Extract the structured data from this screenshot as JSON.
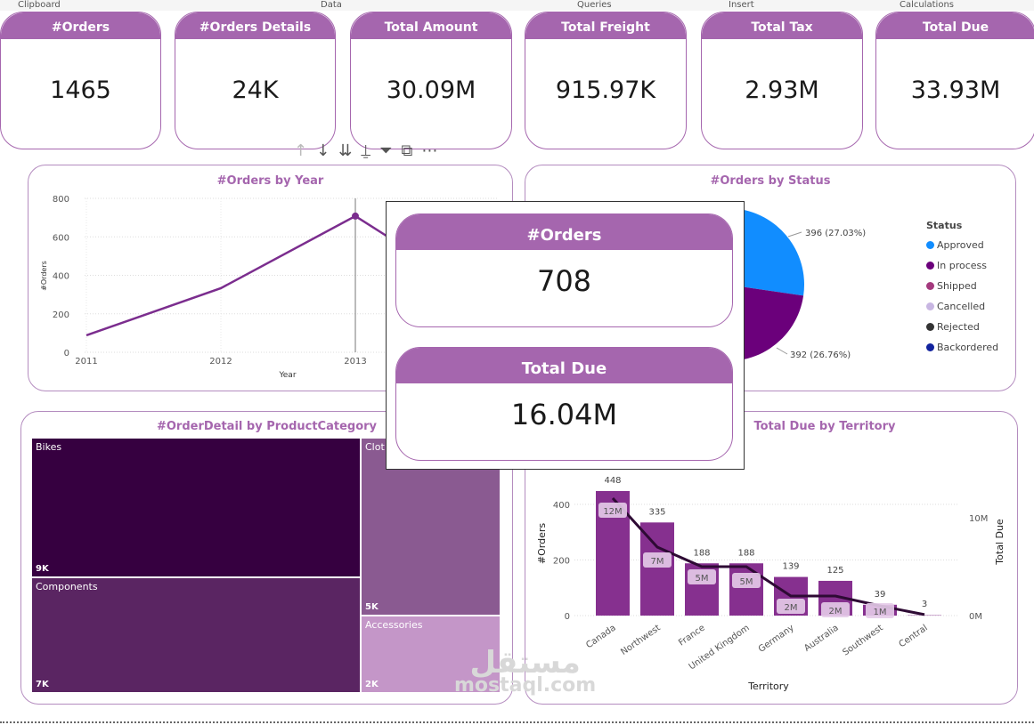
{
  "ribbon": [
    "Clipboard",
    "Data",
    "Queries",
    "Insert",
    "Calculations"
  ],
  "cards": [
    {
      "label": "#Orders",
      "value": "1465"
    },
    {
      "label": "#Orders Details",
      "value": "24K"
    },
    {
      "label": "Total Amount",
      "value": "30.09M"
    },
    {
      "label": "Total Freight",
      "value": "915.97K"
    },
    {
      "label": "Total Tax",
      "value": "2.93M"
    },
    {
      "label": "Total Due",
      "value": "33.93M"
    }
  ],
  "visual_header_icons": [
    "arrow-up-icon",
    "arrow-down-icon",
    "double-arrow-down-icon",
    "expand-hierarchy-icon",
    "filter-icon",
    "focus-mode-icon",
    "more-options-icon"
  ],
  "tooltip": {
    "orders_label": "#Orders",
    "orders_value": "708",
    "due_label": "Total Due",
    "due_value": "16.04M"
  },
  "colors": {
    "accent": "#a566ae",
    "line": "#7b2d8e",
    "bar": "#86308f",
    "combo_line": "#2e0a34"
  },
  "chart_data": [
    {
      "type": "line",
      "title": "#Orders by Year",
      "xlabel": "Year",
      "ylabel": "#Orders",
      "x": [
        "2011",
        "2012",
        "2013"
      ],
      "values": [
        88,
        333,
        708
      ],
      "ylim": [
        0,
        800
      ],
      "yticks": [
        "0",
        "200",
        "400",
        "600",
        "800"
      ],
      "grid": true,
      "highlight": "2013"
    },
    {
      "type": "pie",
      "title": "#Orders by Status",
      "legend_title": "Status",
      "legend_position": "right",
      "legend": [
        {
          "name": "Approved",
          "color": "#118dff"
        },
        {
          "name": "In process",
          "color": "#6b007b"
        },
        {
          "name": "Shipped",
          "color": "#a43a7e"
        },
        {
          "name": "Cancelled",
          "color": "#c8b6e2"
        },
        {
          "name": "Rejected",
          "color": "#333333"
        },
        {
          "name": "Backordered",
          "color": "#12239e"
        }
      ],
      "slices": [
        {
          "name": "Approved",
          "value": 396,
          "label": "396 (27.03%)"
        },
        {
          "name": "In process",
          "value": 392,
          "label": "392 (26.76%)"
        }
      ]
    },
    {
      "type": "treemap",
      "title": "#OrderDetail by ProductCategory",
      "items": [
        {
          "name": "Bikes",
          "label": "9K",
          "color": "#360040"
        },
        {
          "name": "Components",
          "label": "7K",
          "color": "#5a2562"
        },
        {
          "name": "Clothing",
          "display": "Clot",
          "label": "5K",
          "color": "#8a5a91"
        },
        {
          "name": "Accessories",
          "label": "2K",
          "color": "#c496c8"
        }
      ]
    },
    {
      "type": "bar",
      "title": "Total Due by Territory",
      "xlabel": "Territory",
      "ylabel": "#Orders",
      "y2label": "Total Due",
      "categories": [
        "Canada",
        "Northwest",
        "France",
        "United Kingdom",
        "Germany",
        "Australia",
        "Southwest",
        "Central"
      ],
      "series": [
        {
          "name": "#Orders",
          "values": [
            448,
            335,
            188,
            188,
            139,
            125,
            39,
            3
          ]
        },
        {
          "name": "Total Due",
          "type": "line",
          "values": [
            12,
            7,
            5,
            5,
            2,
            2,
            1,
            0.1
          ],
          "labels": [
            "12M",
            "7M",
            "5M",
            "5M",
            "2M",
            "2M",
            "1M",
            ""
          ]
        }
      ],
      "ylim": [
        0,
        480
      ],
      "yticks": [
        "0",
        "200",
        "400"
      ],
      "y2ticks": [
        "0M",
        "10M"
      ],
      "y2unit": "M"
    }
  ],
  "watermark": {
    "arabic": "مستقل",
    "latin": "mostaql.com"
  }
}
